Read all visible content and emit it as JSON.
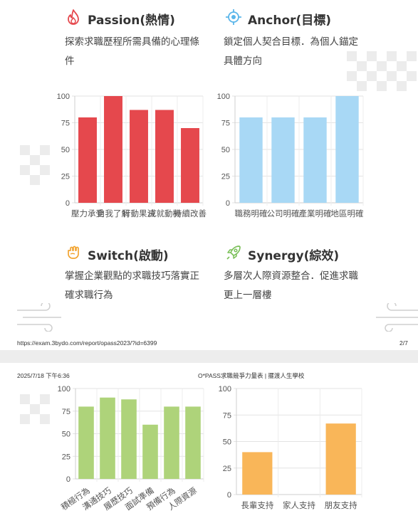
{
  "sections": [
    {
      "title": "Passion(熱情)",
      "desc_lines": [
        "探索求職歷程所需具備的心理條",
        "件"
      ],
      "icon": "flame-icon"
    },
    {
      "title": "Anchor(目標)",
      "desc_lines": [
        "鎖定個人契合目標．為個人錨定",
        "具體方向"
      ],
      "icon": "target-icon"
    },
    {
      "title": "Switch(啟動)",
      "desc_lines": [
        "掌握企業觀點的求職技巧落實正",
        "確求職行為"
      ],
      "icon": "fist-icon"
    },
    {
      "title": "Synergy(綜效)",
      "desc_lines": [
        "多層次人際資源整合．促進求職",
        "更上一層樓"
      ],
      "icon": "rocket-icon"
    }
  ],
  "footer": {
    "url": "https://exam.3bydo.com/report/opass2023/?id=6399",
    "page": "2/7",
    "datetime": "2025/7/18 下午6:36",
    "site_title": "O*PASS求職競爭力量表 | 擺渡人生學校"
  },
  "chart_data": [
    {
      "type": "bar",
      "name": "passion",
      "categories": [
        "壓力承受",
        "自我了解",
        "行動果決",
        "成就動機",
        "持續改善"
      ],
      "values": [
        80,
        100,
        87,
        87,
        70
      ],
      "ylim": [
        0,
        100
      ],
      "yticks": [
        0,
        25,
        50,
        75,
        100
      ],
      "color": "#e5484d",
      "grid": true,
      "label_rotate": false
    },
    {
      "type": "bar",
      "name": "anchor",
      "categories": [
        "職務明確",
        "公司明確",
        "產業明確",
        "地區明確"
      ],
      "values": [
        80,
        80,
        80,
        100
      ],
      "ylim": [
        0,
        100
      ],
      "yticks": [
        0,
        25,
        50,
        75,
        100
      ],
      "color": "#a8d8f5",
      "grid": true,
      "label_rotate": false
    },
    {
      "type": "bar",
      "name": "switch",
      "categories": [
        "積極行為",
        "溝通技巧",
        "履歷技巧",
        "面試準備",
        "預備行為",
        "人際資源"
      ],
      "values": [
        80,
        90,
        88,
        60,
        80,
        80
      ],
      "ylim": [
        0,
        100
      ],
      "yticks": [
        0,
        25,
        50,
        75,
        100
      ],
      "color": "#aed37a",
      "grid": true,
      "label_rotate": true
    },
    {
      "type": "bar",
      "name": "synergy",
      "categories": [
        "長輩支持",
        "家人支持",
        "朋友支持"
      ],
      "values": [
        40,
        0,
        67
      ],
      "ylim": [
        0,
        100
      ],
      "yticks": [
        0,
        25,
        50,
        75,
        100
      ],
      "color": "#f9b659",
      "grid": true,
      "label_rotate": false
    }
  ]
}
